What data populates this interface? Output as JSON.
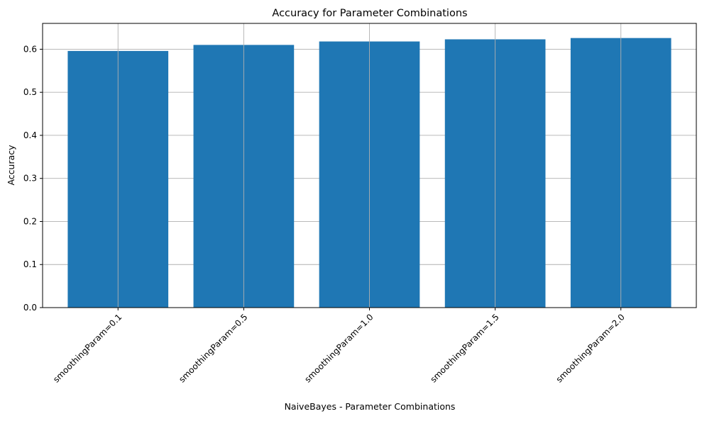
{
  "chart_data": {
    "type": "bar",
    "title": "Accuracy for Parameter Combinations",
    "xlabel": "NaiveBayes - Parameter Combinations",
    "ylabel": "Accuracy",
    "categories": [
      "smoothingParam=0.1",
      "smoothingParam=0.5",
      "smoothingParam=1.0",
      "smoothingParam=1.5",
      "smoothingParam=2.0"
    ],
    "values": [
      0.596,
      0.61,
      0.618,
      0.623,
      0.626
    ],
    "ylim": [
      0,
      0.66
    ],
    "yticks": [
      "0.0",
      "0.1",
      "0.2",
      "0.3",
      "0.4",
      "0.5",
      "0.6"
    ],
    "grid": true,
    "bar_color": "#1f77b4",
    "grid_color": "#b0b0b0"
  }
}
